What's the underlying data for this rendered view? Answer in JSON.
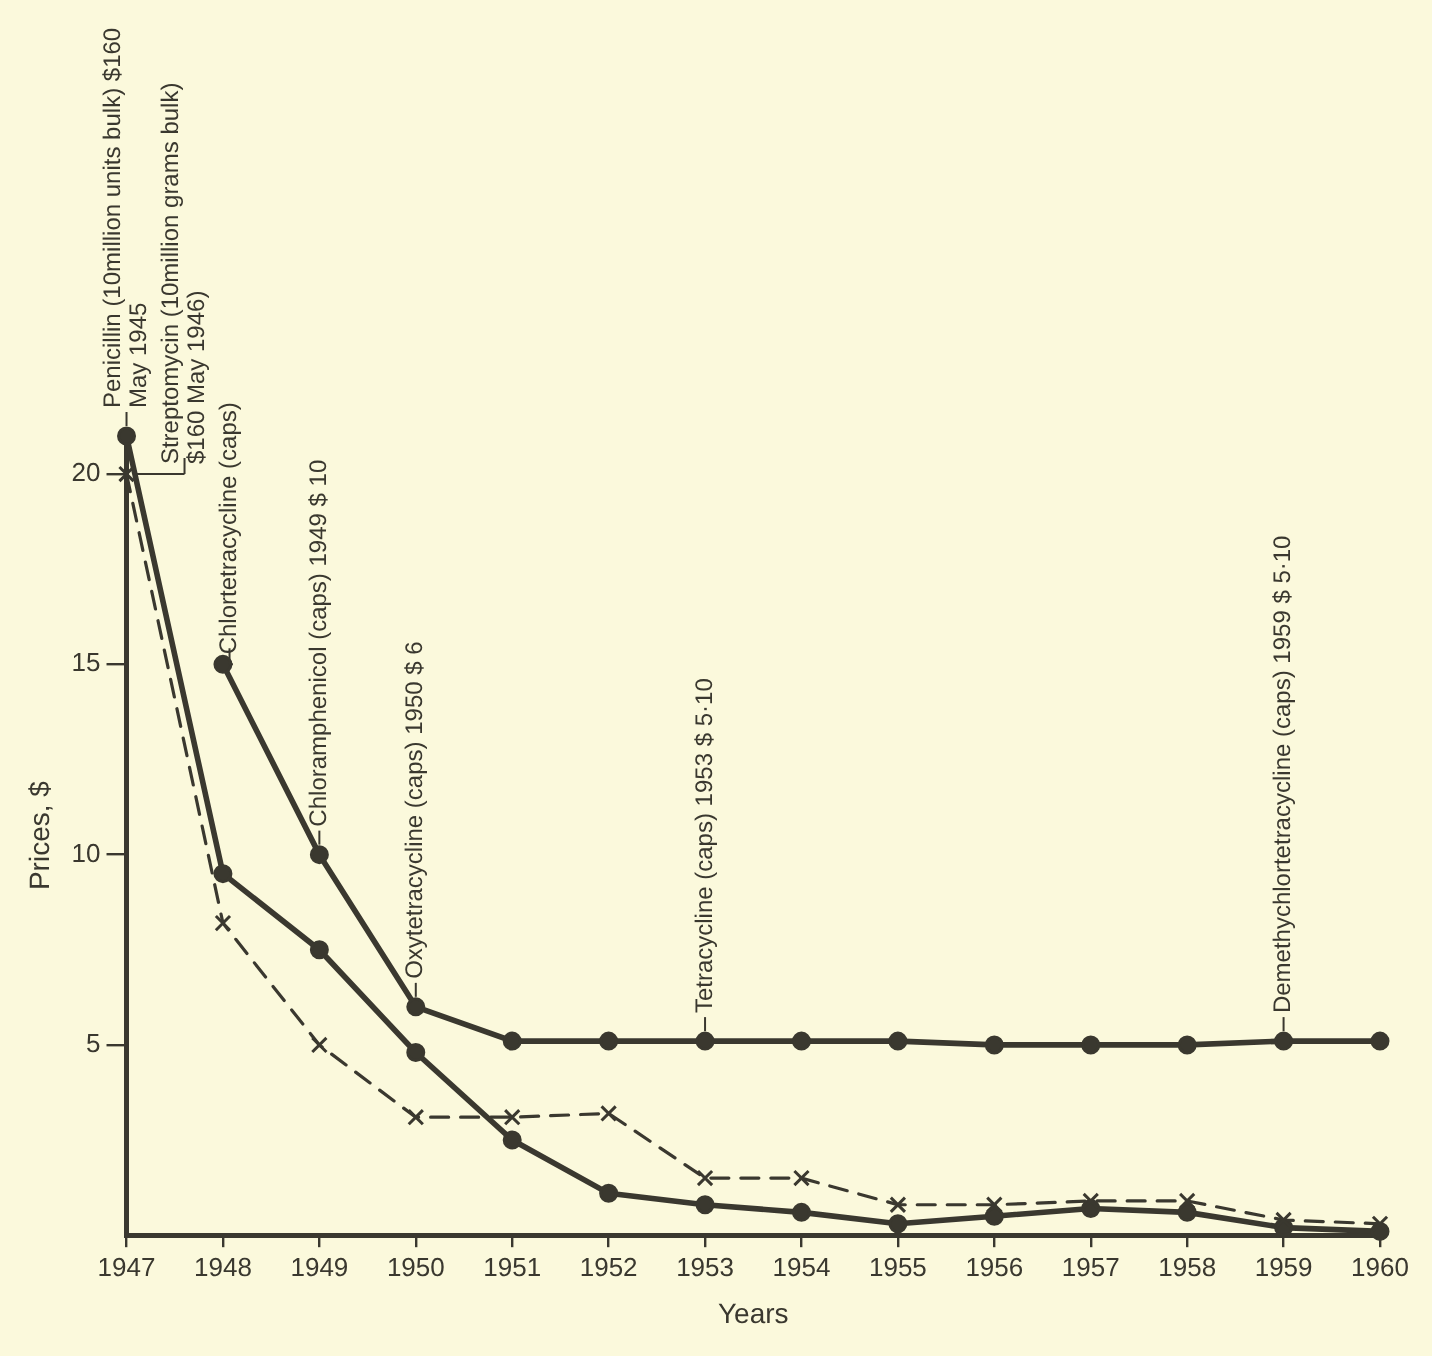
{
  "chart_data": {
    "type": "line",
    "xlabel": "Years",
    "ylabel": "Prices, $",
    "x": [
      1947,
      1948,
      1949,
      1950,
      1951,
      1952,
      1953,
      1954,
      1955,
      1956,
      1957,
      1958,
      1959,
      1960
    ],
    "series": [
      {
        "color": "#3a382f",
        "marker": "circle",
        "line_style": "solid",
        "values": [
          21,
          9.5,
          7.5,
          4.8,
          2.5,
          1.1,
          0.8,
          0.6,
          0.3,
          0.5,
          0.7,
          0.6,
          0.2,
          0.1
        ]
      },
      {
        "color": "#3a382f",
        "marker": "cross",
        "line_style": "dashed",
        "values": [
          20,
          8.2,
          5,
          3.1,
          3.1,
          3.2,
          1.5,
          1.5,
          0.8,
          0.8,
          0.9,
          0.9,
          0.4,
          0.3
        ]
      },
      {
        "color": "#3a382f",
        "marker": "circle",
        "line_style": "solid",
        "values": [
          null,
          15,
          10,
          6,
          5.1,
          5.1,
          5.1,
          5.1,
          5.1,
          5.0,
          5.0,
          5.0,
          5.1,
          5.1
        ]
      }
    ],
    "xlim": [
      1947,
      1960
    ],
    "xticks": [
      1947,
      1948,
      1949,
      1950,
      1951,
      1952,
      1953,
      1954,
      1955,
      1956,
      1957,
      1958,
      1959,
      1960
    ],
    "ylim": [
      0,
      21
    ],
    "yticks": [
      5,
      10,
      15,
      20
    ],
    "grid": false,
    "legend": false,
    "annotations": [
      {
        "text": "Penicillin (10million units bulk) $160 May 1945",
        "x": 1947,
        "y": 21
      },
      {
        "text": "Streptomycin (10million grams bulk) $160 May 1946)",
        "x": 1947,
        "y": 20
      },
      {
        "text": "Chlortetracycline (caps)",
        "x": 1948,
        "y": 15
      },
      {
        "text": "Chloramphenicol (caps) 1949 $ 10",
        "x": 1949,
        "y": 10
      },
      {
        "text": "Oxytetracycline (caps) 1950 $ 6",
        "x": 1950,
        "y": 6
      },
      {
        "text": "Tetracycline (caps) 1953 $ 5·10",
        "x": 1953,
        "y": 5.1
      },
      {
        "text": "Demethychlortetracycline (caps) 1959 $ 5·10",
        "x": 1959,
        "y": 5.1
      }
    ]
  }
}
